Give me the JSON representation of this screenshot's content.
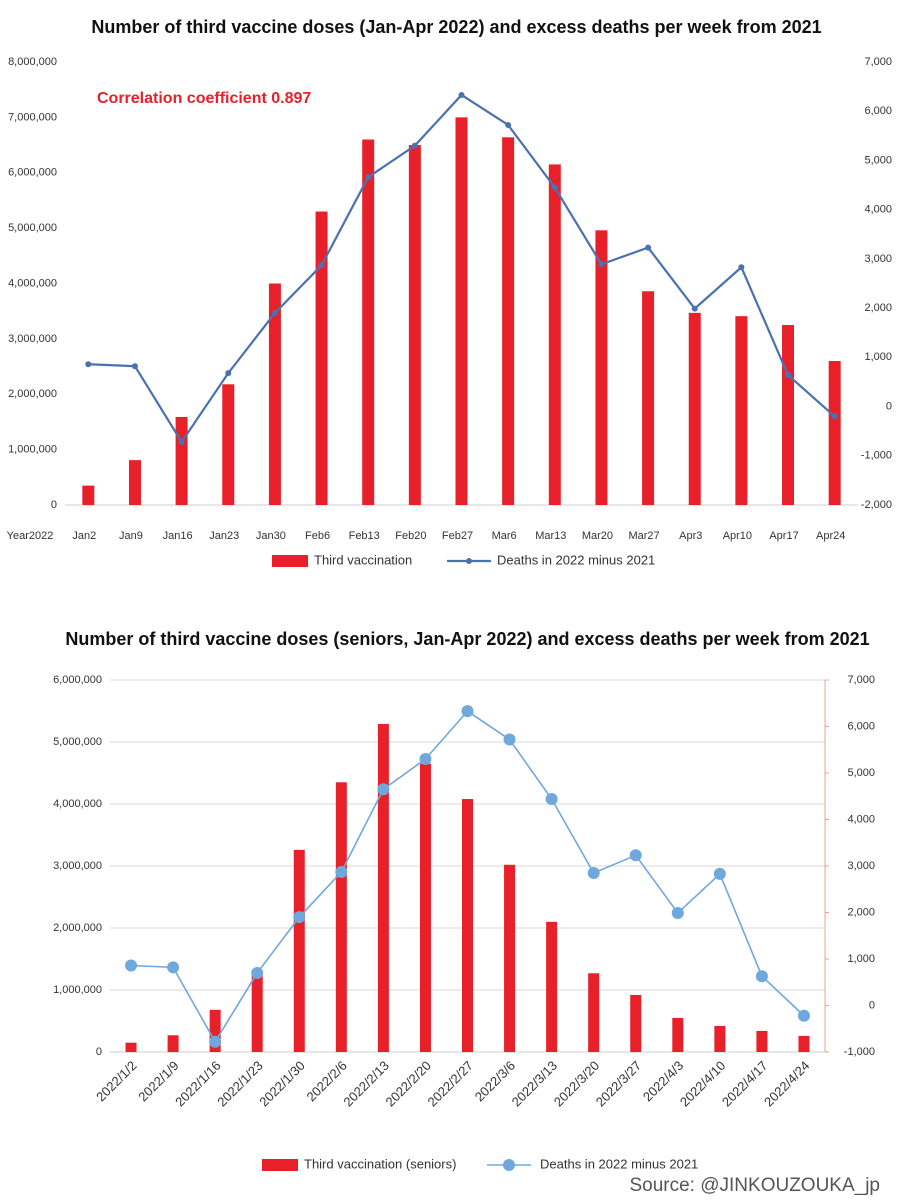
{
  "chart_data": [
    {
      "type": "combo",
      "title": "Number of third vaccine doses (Jan-Apr 2022) and excess deaths per week from 2021",
      "annotation": "Correlation coefficient 0.897",
      "x_label": "Year2022",
      "categories": [
        "Jan2",
        "Jan9",
        "Jan16",
        "Jan23",
        "Jan30",
        "Feb6",
        "Feb13",
        "Feb20",
        "Feb27",
        "Mar6",
        "Mar13",
        "Mar20",
        "Mar27",
        "Apr3",
        "Apr10",
        "Apr17",
        "Apr24"
      ],
      "series": [
        {
          "name": "Third vaccination",
          "type": "bar",
          "color": "#e8202a",
          "axis": "y",
          "values": [
            350000,
            810000,
            1590000,
            2180000,
            4000000,
            5300000,
            6600000,
            6500000,
            7000000,
            6640000,
            6150000,
            4960000,
            3860000,
            3470000,
            3410000,
            3250000,
            2600000
          ]
        },
        {
          "name": "Deaths in 2022 minus 2021",
          "type": "line",
          "color": "#4a72b0",
          "axis": "y2",
          "values": [
            860,
            820,
            -720,
            680,
            1900,
            2870,
            4660,
            5300,
            6330,
            5720,
            4450,
            2890,
            3230,
            1990,
            2830,
            640,
            -200
          ]
        }
      ],
      "ylim": [
        0,
        8000000
      ],
      "yticks": [
        0,
        {
          "value": 1000000,
          "label": "1,000,000"
        },
        {
          "value": 2000000,
          "label": "2,000,000"
        },
        {
          "value": 3000000,
          "label": "3,000,000"
        },
        {
          "value": 4000000,
          "label": "4,000,000"
        },
        {
          "value": 5000000,
          "label": "5,000,000"
        },
        {
          "value": 6000000,
          "label": "6,000,000"
        },
        {
          "value": 7000000,
          "label": "7,000,000"
        },
        {
          "value": 8000000,
          "label": "8,000,000"
        }
      ],
      "y2lim": [
        -2000,
        7000
      ],
      "y2ticks": [
        {
          "value": -2000,
          "label": "-2,000"
        },
        {
          "value": -1000,
          "label": "-1,000"
        },
        0,
        {
          "value": 1000,
          "label": "1,000"
        },
        {
          "value": 2000,
          "label": "2,000"
        },
        {
          "value": 3000,
          "label": "3,000"
        },
        {
          "value": 4000,
          "label": "4,000"
        },
        {
          "value": 5000,
          "label": "5,000"
        },
        {
          "value": 6000,
          "label": "6,000"
        },
        {
          "value": 7000,
          "label": "7,000"
        }
      ],
      "grid": false
    },
    {
      "type": "combo",
      "title": "Number of third vaccine doses (seniors, Jan-Apr 2022) and excess deaths per week from 2021",
      "categories": [
        "2022/1/2",
        "2022/1/9",
        "2022/1/16",
        "2022/1/23",
        "2022/1/30",
        "2022/2/6",
        "2022/2/13",
        "2022/2/20",
        "2022/2/27",
        "2022/3/6",
        "2022/3/13",
        "2022/3/20",
        "2022/3/27",
        "2022/4/3",
        "2022/4/10",
        "2022/4/17",
        "2022/4/24"
      ],
      "series": [
        {
          "name": "Third vaccination (seniors)",
          "type": "bar",
          "color": "#e8202a",
          "axis": "y",
          "values": [
            150000,
            270000,
            680000,
            1320000,
            3260000,
            4350000,
            5290000,
            4650000,
            4080000,
            3020000,
            2100000,
            1270000,
            920000,
            550000,
            420000,
            340000,
            260000
          ]
        },
        {
          "name": "Deaths in 2022 minus 2021",
          "type": "line",
          "color": "#6fa8dc",
          "axis": "y2",
          "values": [
            860,
            820,
            -780,
            700,
            1900,
            2870,
            4650,
            5300,
            6330,
            5720,
            4440,
            2850,
            3230,
            1990,
            2830,
            630,
            -220
          ]
        }
      ],
      "ylim": [
        0,
        6000000
      ],
      "yticks": [
        0,
        {
          "value": 1000000,
          "label": "1,000,000"
        },
        {
          "value": 2000000,
          "label": "2,000,000"
        },
        {
          "value": 3000000,
          "label": "3,000,000"
        },
        {
          "value": 4000000,
          "label": "4,000,000"
        },
        {
          "value": 5000000,
          "label": "5,000,000"
        },
        {
          "value": 6000000,
          "label": "6,000,000"
        }
      ],
      "y2lim": [
        -1000,
        7000
      ],
      "y2ticks": [
        {
          "value": -1000,
          "label": "-1,000"
        },
        0,
        {
          "value": 1000,
          "label": "1,000"
        },
        {
          "value": 2000,
          "label": "2,000"
        },
        {
          "value": 3000,
          "label": "3,000"
        },
        {
          "value": 4000,
          "label": "4,000"
        },
        {
          "value": 5000,
          "label": "5,000"
        },
        {
          "value": 6000,
          "label": "6,000"
        },
        {
          "value": 7000,
          "label": "7,000"
        }
      ],
      "y2_axis_color": "#f0a090",
      "grid": true
    }
  ],
  "source": "Source: @JINKOUZOUKA_jp"
}
